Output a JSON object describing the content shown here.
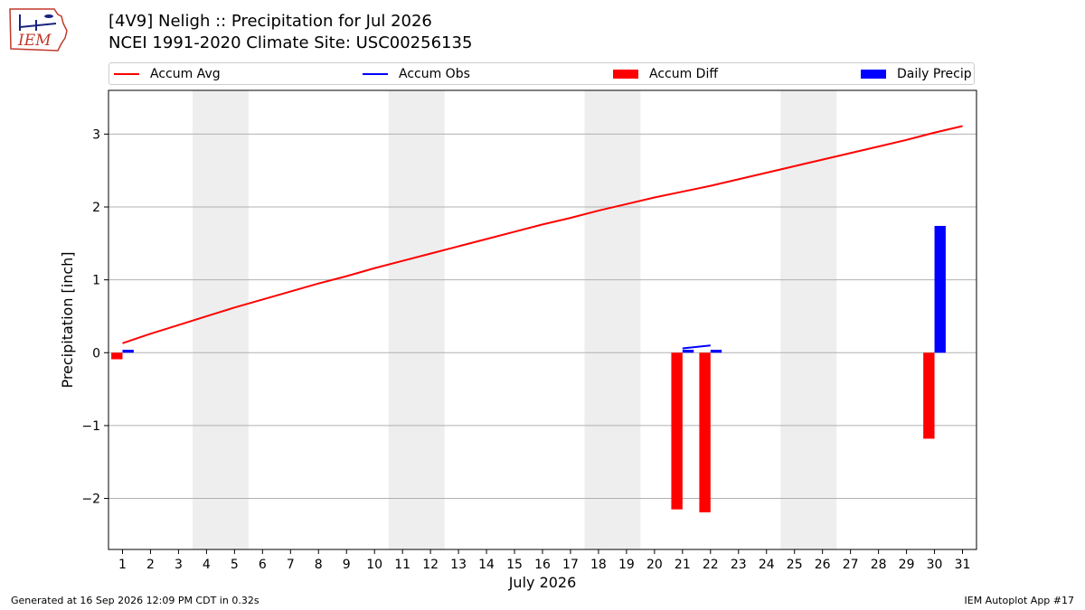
{
  "header": {
    "title": "[4V9] Neligh :: Precipitation for Jul 2026",
    "subtitle": "NCEI 1991-2020 Climate Site: USC00256135",
    "logo_text": "IEM"
  },
  "footer": {
    "left": "Generated at 16 Sep 2026 12:09 PM CDT in 0.32s",
    "right": "IEM Autoplot App #17"
  },
  "colors": {
    "accum_avg": "#ff0000",
    "accum_obs": "#0000ff",
    "accum_diff": "#ff0000",
    "daily_precip": "#0000ff",
    "weekend_shade": "#eeeeee",
    "grid": "#b0b0b0"
  },
  "legend": [
    {
      "name": "Accum Avg",
      "kind": "line",
      "color": "#ff0000"
    },
    {
      "name": "Accum Obs",
      "kind": "line",
      "color": "#0000ff"
    },
    {
      "name": "Accum Diff",
      "kind": "patch",
      "color": "#ff0000"
    },
    {
      "name": "Daily Precip",
      "kind": "patch",
      "color": "#0000ff"
    }
  ],
  "chart_data": {
    "type": "bar",
    "xlabel": "July 2026",
    "ylabel": "Precipitation [inch]",
    "xlim": [
      0.5,
      31.5
    ],
    "ylim": [
      -2.7,
      3.6
    ],
    "yticks": [
      -2,
      -1,
      0,
      1,
      2,
      3
    ],
    "ytick_labels": [
      "−2",
      "−1",
      "0",
      "1",
      "2",
      "3"
    ],
    "xticks": [
      1,
      2,
      3,
      4,
      5,
      6,
      7,
      8,
      9,
      10,
      11,
      12,
      13,
      14,
      15,
      16,
      17,
      18,
      19,
      20,
      21,
      22,
      23,
      24,
      25,
      26,
      27,
      28,
      29,
      30,
      31
    ],
    "grid": "horizontal",
    "legend_placement": "top",
    "weekend_spans": [
      [
        3.5,
        5.5
      ],
      [
        10.5,
        12.5
      ],
      [
        17.5,
        19.5
      ],
      [
        24.5,
        26.5
      ]
    ],
    "series": [
      {
        "name": "Accum Avg",
        "kind": "line",
        "x": [
          1,
          2,
          3,
          4,
          5,
          6,
          7,
          8,
          9,
          10,
          11,
          12,
          13,
          14,
          15,
          16,
          17,
          18,
          19,
          20,
          21,
          22,
          23,
          24,
          25,
          26,
          27,
          28,
          29,
          30,
          31
        ],
        "values": [
          0.13,
          0.26,
          0.38,
          0.5,
          0.62,
          0.73,
          0.84,
          0.95,
          1.05,
          1.16,
          1.26,
          1.36,
          1.46,
          1.56,
          1.66,
          1.76,
          1.85,
          1.95,
          2.04,
          2.13,
          2.21,
          2.29,
          2.38,
          2.47,
          2.56,
          2.65,
          2.74,
          2.83,
          2.92,
          3.02,
          3.11
        ]
      },
      {
        "name": "Accum Obs",
        "kind": "line",
        "x": [
          21,
          22
        ],
        "values": [
          0.06,
          0.1
        ]
      },
      {
        "name": "Accum Diff",
        "kind": "bar",
        "x": [
          1,
          21,
          22,
          30
        ],
        "values": [
          -0.09,
          -2.15,
          -2.19,
          -1.18
        ]
      },
      {
        "name": "Daily Precip",
        "kind": "bar",
        "x": [
          1,
          21,
          22,
          30
        ],
        "values": [
          0.04,
          0.04,
          0.04,
          1.74
        ]
      }
    ]
  }
}
